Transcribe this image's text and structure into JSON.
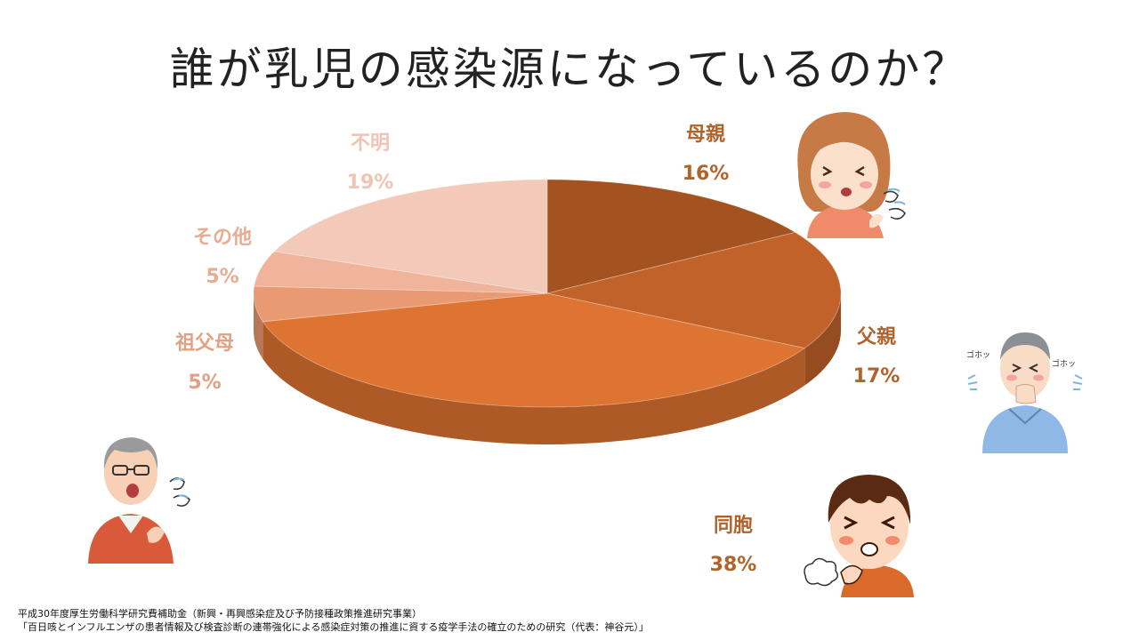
{
  "title": "誰が乳児の感染源になっているのか？",
  "chart_data": {
    "type": "pie",
    "categories": [
      "母親",
      "父親",
      "同胞",
      "祖父母",
      "その他",
      "不明"
    ],
    "values": [
      16,
      17,
      38,
      5,
      5,
      19
    ],
    "value_labels": [
      "16%",
      "17%",
      "38%",
      "5%",
      "5%",
      "19%"
    ],
    "colors": [
      "#a4521f",
      "#c0622a",
      "#de7432",
      "#e99a72",
      "#f0b49a",
      "#f3cab9"
    ],
    "label_colors": [
      "#b0642c",
      "#b0642c",
      "#b0642c",
      "#e0a283",
      "#e8ab93",
      "#f0c4b2"
    ],
    "start": "12 o'clock",
    "direction": "clockwise",
    "style": "3d"
  },
  "footer": {
    "line1": "平成30年度厚生労働科学研究費補助金（新興・再興感染症及び予防接種政策推進研究事業）",
    "line2": "「百日咳とインフルエンザの患者情報及び検査診断の連帯強化による感染症対策の推進に資する疫学手法の確立のための研究（代表：神谷元）」"
  },
  "illustrations": {
    "mother": {
      "icon": "coughing-mother-icon",
      "colors": {
        "hair": "#c77a45",
        "shirt": "#ef8a6a",
        "skin": "#fbe0cc"
      }
    },
    "father": {
      "icon": "coughing-father-icon",
      "sound_text": "ゴホッ",
      "colors": {
        "hair": "#8c8f93",
        "shirt": "#8fb8e6",
        "skin": "#f8dcc6"
      }
    },
    "sibling": {
      "icon": "coughing-child-icon",
      "colors": {
        "hair": "#5a2a12",
        "shirt": "#d96a2a",
        "skin": "#fbd8bf"
      }
    },
    "grandfather": {
      "icon": "coughing-grandfather-icon",
      "colors": {
        "hair": "#9a9a9a",
        "shirt": "#d95a3a",
        "skin": "#f7d0b6"
      }
    }
  }
}
